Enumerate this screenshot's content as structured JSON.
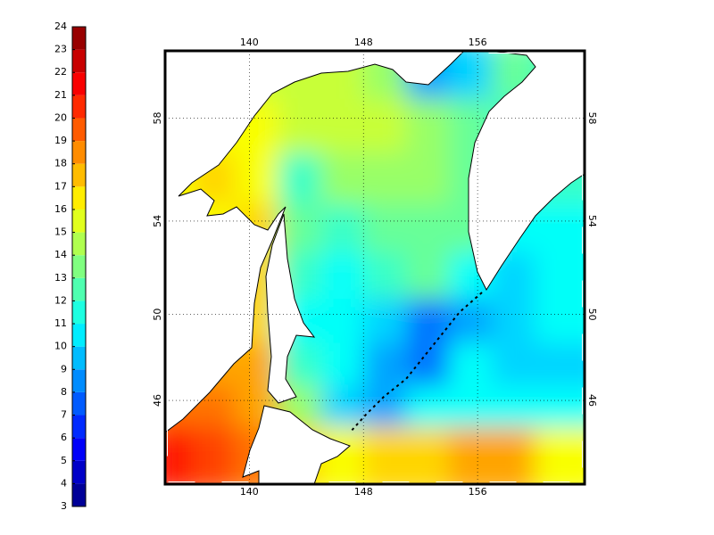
{
  "chart_data": {
    "type": "map",
    "xlim": [
      134.1,
      163.5
    ],
    "ylim": [
      41.8,
      60.4
    ],
    "xticks": [
      140,
      148,
      156
    ],
    "yticks": [
      46,
      50,
      54,
      58
    ],
    "grid": true,
    "colormap": "jet",
    "field": {
      "lon": [
        135.5,
        138.5,
        141.5,
        144.5,
        147.5,
        150.5,
        153.5,
        156.5,
        159.5,
        162.5
      ],
      "lat": [
        59,
        57,
        55,
        53,
        51,
        49,
        47,
        45,
        43
      ],
      "values": [
        [
          15,
          15,
          15,
          15,
          15,
          14,
          9,
          10,
          13,
          12
        ],
        [
          16,
          16,
          16,
          15,
          15,
          15,
          14,
          13,
          12,
          12
        ],
        [
          16,
          17,
          16,
          12,
          14,
          14,
          14,
          13,
          12,
          12
        ],
        [
          16,
          16,
          17,
          13,
          12,
          13,
          13,
          13,
          11,
          11
        ],
        [
          16,
          17,
          17,
          12,
          11,
          12,
          13,
          11,
          10,
          11
        ],
        [
          17,
          17,
          17,
          11,
          11,
          10,
          8,
          9,
          10,
          11
        ],
        [
          18,
          18,
          18,
          12,
          11,
          9,
          8,
          11,
          10,
          10
        ],
        [
          19,
          19,
          18,
          14,
          10,
          9,
          11,
          11,
          11,
          11
        ],
        [
          21,
          20,
          19,
          17,
          16,
          17,
          17,
          18,
          18,
          16
        ]
      ]
    },
    "colorbar": {
      "lim": [
        3,
        24
      ],
      "ticks": [
        3,
        4,
        5,
        6,
        7,
        8,
        9,
        10,
        11,
        12,
        13,
        14,
        15,
        16,
        17,
        18,
        19,
        20,
        21,
        22,
        23,
        24
      ]
    }
  }
}
